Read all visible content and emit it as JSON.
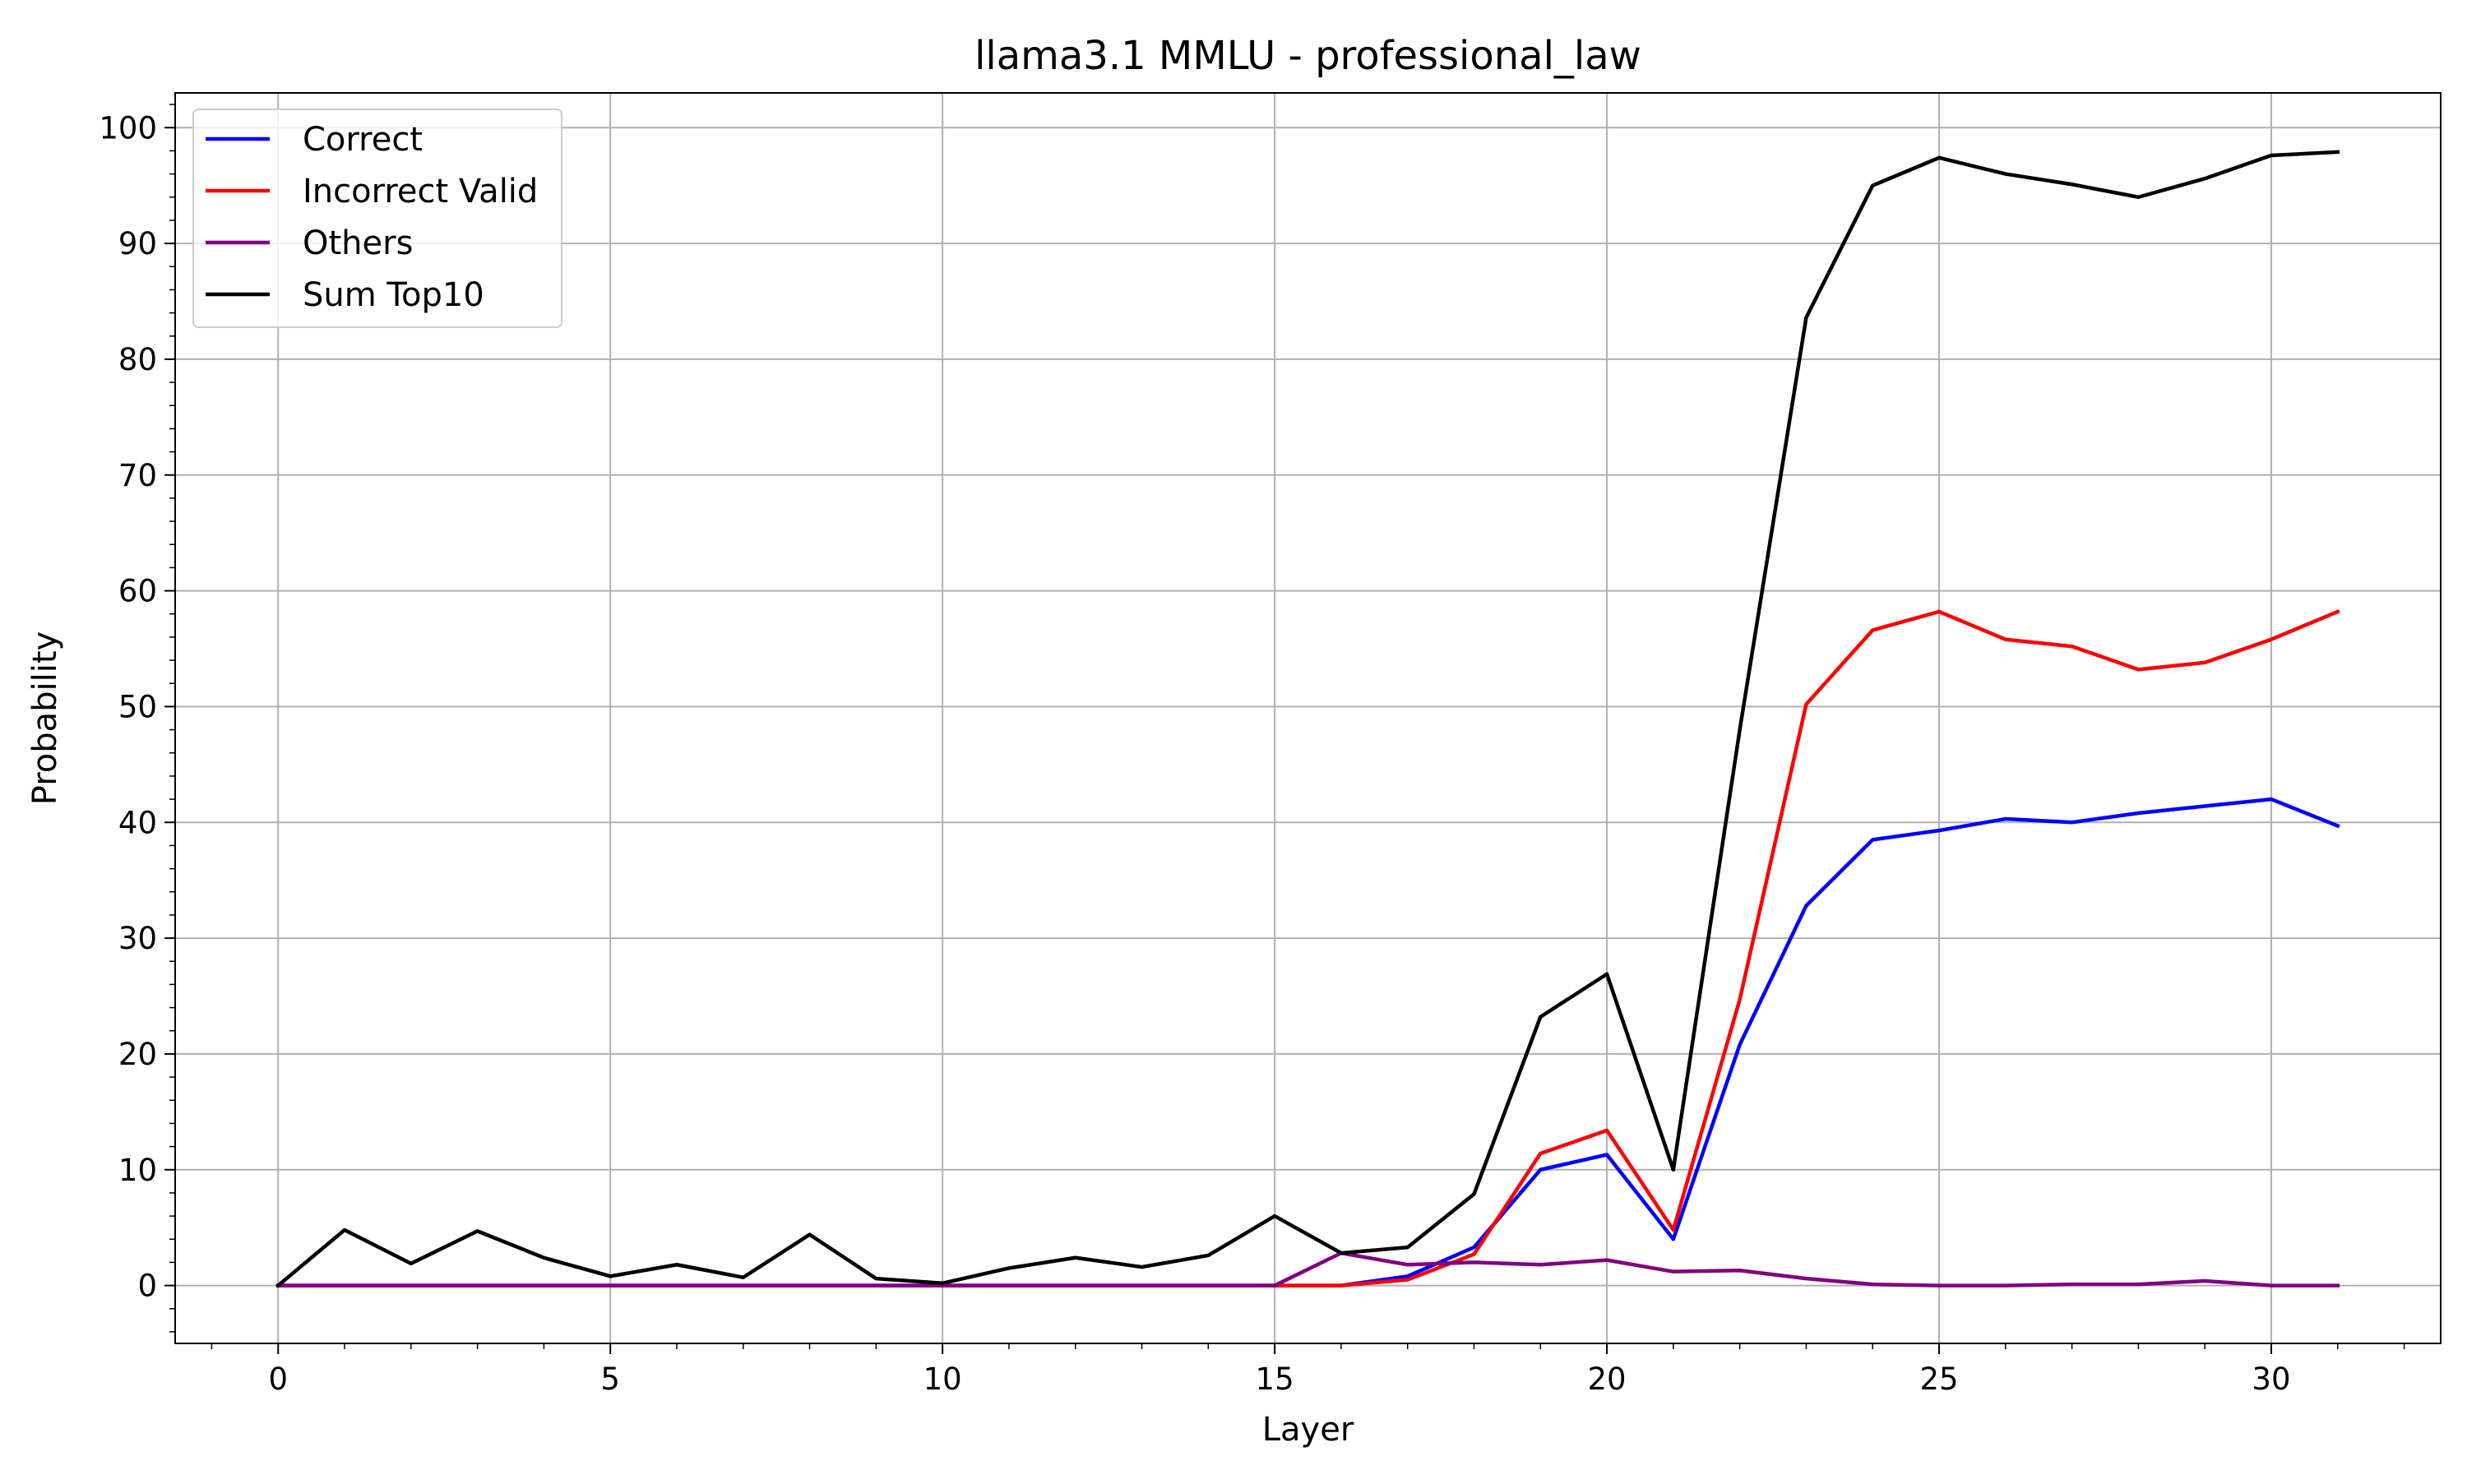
{
  "chart_data": {
    "type": "line",
    "title": "llama3.1 MMLU - professional_law",
    "xlabel": "Layer",
    "ylabel": "Probability",
    "xlim": [
      -1.55,
      32.55
    ],
    "ylim": [
      -5,
      103
    ],
    "xticks": [
      0,
      5,
      10,
      15,
      20,
      25,
      30
    ],
    "yticks": [
      0,
      10,
      20,
      30,
      40,
      50,
      60,
      70,
      80,
      90,
      100
    ],
    "grid": true,
    "legend_position": "top-left",
    "x": [
      0,
      1,
      2,
      3,
      4,
      5,
      6,
      7,
      8,
      9,
      10,
      11,
      12,
      13,
      14,
      15,
      16,
      17,
      18,
      19,
      20,
      21,
      22,
      23,
      24,
      25,
      26,
      27,
      28,
      29,
      30,
      31
    ],
    "series": [
      {
        "name": "Correct",
        "color": "#0000ff",
        "values": [
          0,
          0,
          0,
          0,
          0,
          0,
          0,
          0,
          0,
          0,
          0,
          0,
          0,
          0,
          0,
          0,
          0,
          0.8,
          3.3,
          10.0,
          11.3,
          4.0,
          20.8,
          32.8,
          38.5,
          39.3,
          40.3,
          40.0,
          40.8,
          41.4,
          42.0,
          39.7
        ]
      },
      {
        "name": "Incorrect Valid",
        "color": "#ff0000",
        "values": [
          0,
          0,
          0,
          0,
          0,
          0,
          0,
          0,
          0,
          0,
          0,
          0,
          0,
          0,
          0,
          0,
          0,
          0.5,
          2.7,
          11.4,
          13.4,
          4.8,
          24.7,
          50.2,
          56.6,
          58.2,
          55.8,
          55.2,
          53.2,
          53.8,
          55.8,
          58.2
        ]
      },
      {
        "name": "Others",
        "color": "#800080",
        "values": [
          0,
          0,
          0,
          0,
          0,
          0,
          0,
          0,
          0,
          0,
          0,
          0,
          0,
          0,
          0,
          0,
          2.8,
          1.8,
          2.0,
          1.8,
          2.2,
          1.2,
          1.3,
          0.6,
          0.1,
          0.0,
          0.0,
          0.1,
          0.1,
          0.4,
          0.0,
          0.0
        ]
      },
      {
        "name": "Sum Top10",
        "color": "#000000",
        "values": [
          0,
          4.8,
          1.9,
          4.7,
          2.4,
          0.8,
          1.8,
          0.7,
          4.4,
          0.6,
          0.2,
          1.5,
          2.4,
          1.6,
          2.6,
          6.0,
          2.8,
          3.3,
          7.9,
          23.2,
          26.9,
          10.0,
          48.0,
          83.6,
          95.0,
          97.4,
          96.0,
          95.1,
          94.0,
          95.6,
          97.6,
          97.9
        ]
      }
    ]
  }
}
